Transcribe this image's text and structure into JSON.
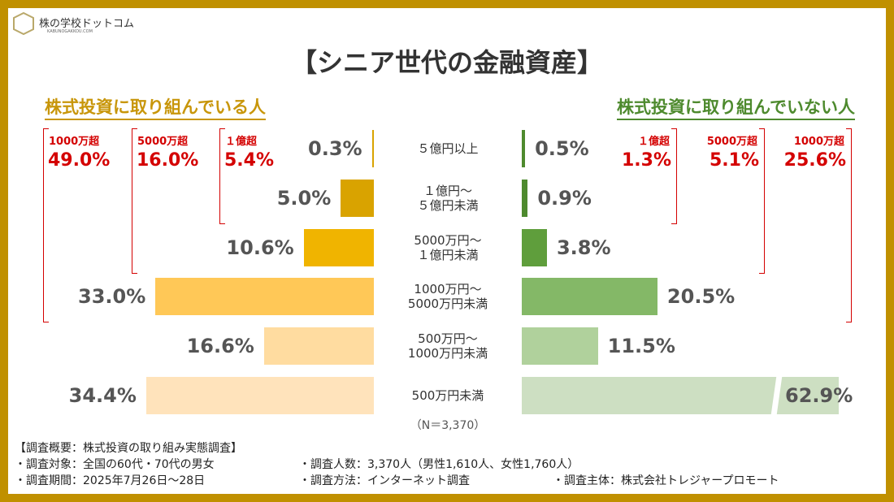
{
  "header": {
    "logo": "株の学校ドットコム",
    "logo_sub": "KABUNOGAKKOU.COM"
  },
  "chart_data": {
    "type": "butterfly",
    "title": "【シニア世代の金融資産】",
    "categories": [
      "５億円以上",
      "１億円～\n５億円未満",
      "5000万円～\n１億円未満",
      "1000万円～\n5000万円未満",
      "500万円～\n1000万円未満",
      "500万円未満"
    ],
    "xlim": [
      0,
      35
    ],
    "series": [
      {
        "name": "株式投資に取り組んでいる人",
        "color": [
          "#d9a300",
          "#d9a300",
          "#f0b400",
          "#ffc857",
          "#ffdca0",
          "#ffe3bb"
        ],
        "values": [
          0.3,
          5.0,
          10.6,
          33.0,
          16.6,
          34.4
        ],
        "value_labels": [
          "0.3%",
          "5.0%",
          "10.6%",
          "33.0%",
          "16.6%",
          "34.4%"
        ],
        "brackets": [
          {
            "label": "１億超",
            "value": 5.4,
            "value_label": "5.4%"
          },
          {
            "label": "5000万超",
            "value": 16.0,
            "value_label": "16.0%"
          },
          {
            "label": "1000万超",
            "value": 49.0,
            "value_label": "49.0%"
          }
        ]
      },
      {
        "name": "株式投資に取り組んでいない人",
        "color": [
          "#4e8a2e",
          "#4e8a2e",
          "#5f9e3c",
          "#84b867",
          "#b0d19c",
          "#cddfc2"
        ],
        "values": [
          0.5,
          0.9,
          3.8,
          20.5,
          11.5,
          62.9
        ],
        "value_labels": [
          "0.5%",
          "0.9%",
          "3.8%",
          "20.5%",
          "11.5%",
          "62.9%"
        ],
        "brackets": [
          {
            "label": "１億超",
            "value": 1.3,
            "value_label": "1.3%"
          },
          {
            "label": "5000万超",
            "value": 5.1,
            "value_label": "5.1%"
          },
          {
            "label": "1000万超",
            "value": 25.6,
            "value_label": "25.6%"
          }
        ]
      }
    ],
    "note": "（N＝3,370）"
  },
  "footer": {
    "heading": "【調査概要：株式投資の取り組み実態調査】",
    "items": [
      "・調査対象：全国の60代・70代の男女",
      "・調査人数：3,370人（男性1,610人、女性1,760人）",
      "・調査期間：2025年7月26日～28日",
      "・調査方法：インターネット調査",
      "・調査主体：株式会社トレジャープロモート"
    ]
  }
}
